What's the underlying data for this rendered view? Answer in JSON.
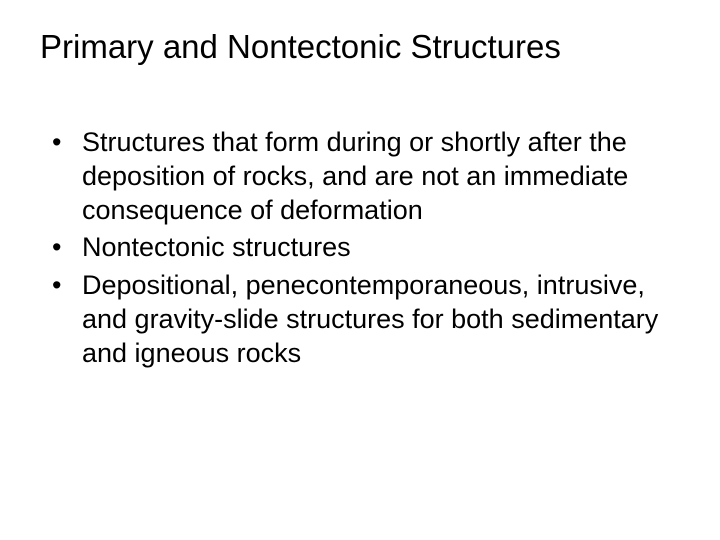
{
  "slide": {
    "title": "Primary and Nontectonic Structures",
    "bullets": [
      "Structures that form during or shortly after the deposition of rocks, and are not an immediate consequence of deformation",
      "Nontectonic structures",
      "Depositional, penecontemporaneous, intrusive, and gravity-slide structures for both sedimentary and igneous rocks"
    ],
    "background_color": "#ffffff",
    "text_color": "#000000",
    "title_fontsize": 33,
    "body_fontsize": 27,
    "font_family": "Arial"
  }
}
